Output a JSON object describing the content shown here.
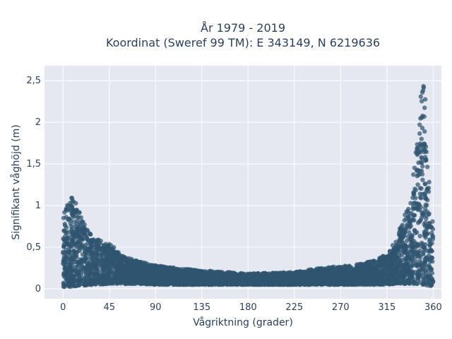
{
  "chart_data": {
    "type": "scatter",
    "title_line1": "År 1979 - 2019",
    "title_line2": "Koordinat (Sweref 99 TM): E 343149, N 6219636",
    "xlabel": "Vågriktning (grader)",
    "ylabel": "Signifikant våghöjd (m)",
    "xlim": [
      -18,
      368
    ],
    "ylim": [
      -0.12,
      2.68
    ],
    "xticks": [
      0,
      45,
      90,
      135,
      180,
      225,
      270,
      315,
      360
    ],
    "xtick_labels": [
      "0",
      "45",
      "90",
      "135",
      "180",
      "225",
      "270",
      "315",
      "360"
    ],
    "yticks": [
      0,
      0.5,
      1,
      1.5,
      2,
      2.5
    ],
    "ytick_labels": [
      "0",
      "0,5",
      "1",
      "1,5",
      "2",
      "2,5"
    ],
    "grid": true,
    "marker_color": "#2f5570",
    "plot_bg": "#e5e8f0",
    "envelope": {
      "direction_deg": [
        0,
        5,
        10,
        20,
        30,
        45,
        60,
        75,
        90,
        110,
        135,
        160,
        180,
        200,
        225,
        250,
        270,
        290,
        305,
        315,
        322,
        330,
        335,
        340,
        343,
        346,
        348,
        350,
        352,
        354,
        356,
        358,
        360
      ],
      "max_height_m": [
        0.85,
        1.15,
        1.1,
        0.8,
        0.62,
        0.55,
        0.38,
        0.33,
        0.28,
        0.25,
        0.22,
        0.2,
        0.18,
        0.19,
        0.2,
        0.25,
        0.27,
        0.3,
        0.35,
        0.42,
        0.55,
        0.8,
        1.0,
        1.3,
        1.65,
        2.0,
        2.35,
        2.55,
        2.35,
        1.75,
        1.35,
        1.0,
        0.75
      ],
      "min_height_m": [
        0.02,
        0.02,
        0.03,
        0.04,
        0.05,
        0.06,
        0.06,
        0.06,
        0.05,
        0.05,
        0.05,
        0.05,
        0.05,
        0.05,
        0.05,
        0.05,
        0.05,
        0.05,
        0.05,
        0.05,
        0.06,
        0.06,
        0.06,
        0.06,
        0.06,
        0.06,
        0.06,
        0.05,
        0.05,
        0.04,
        0.04,
        0.03,
        0.03
      ]
    }
  }
}
